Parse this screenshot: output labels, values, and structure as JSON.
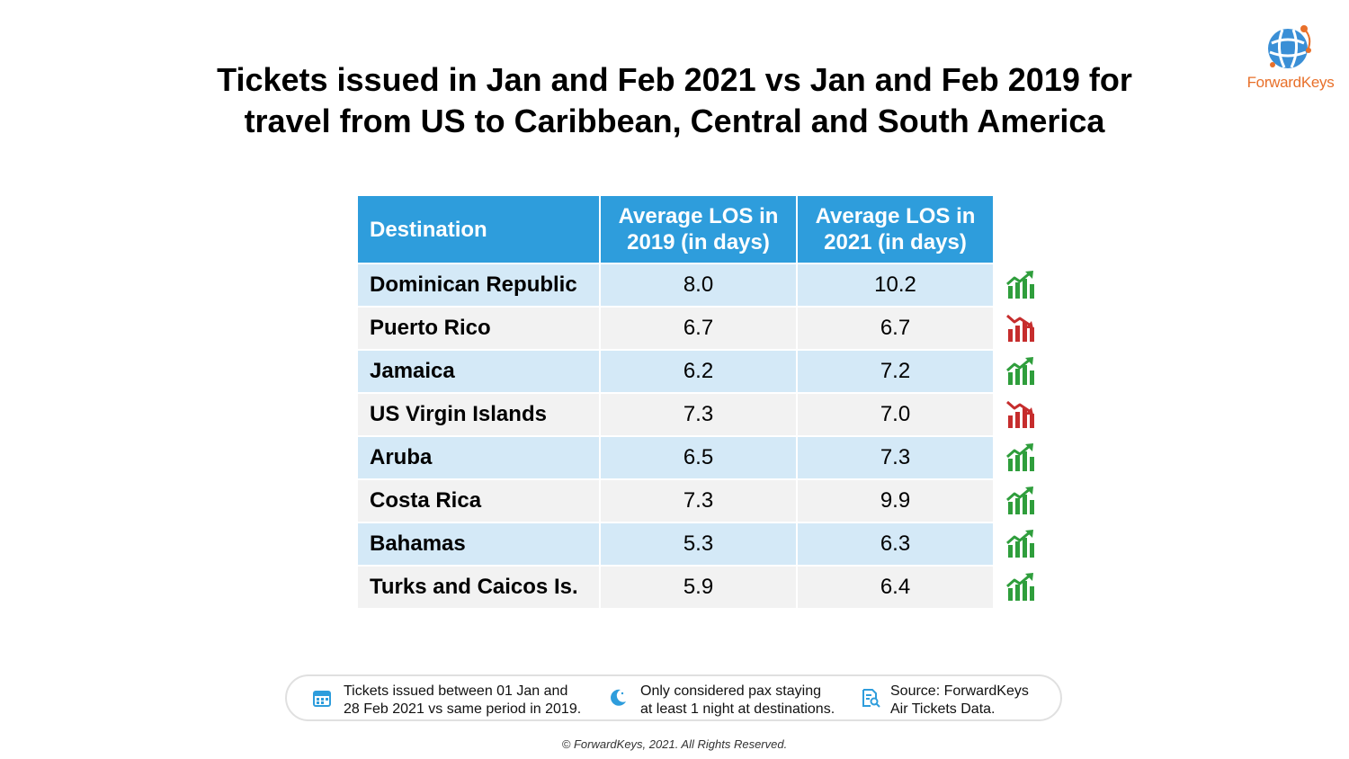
{
  "title_line1": "Tickets issued in Jan and Feb 2021 vs Jan and Feb 2019 for",
  "title_line2": "travel from US to Caribbean, Central and South America",
  "logo": {
    "text": "ForwardKeys",
    "icon": "globe-network-icon",
    "color": "#e8702a"
  },
  "colors": {
    "header": "#2e9ddc",
    "row_odd": "#d4e9f7",
    "row_even": "#f2f2f2",
    "up": "#2f9e3c",
    "down": "#c62d2d"
  },
  "chart_data": {
    "type": "table",
    "columns": [
      "Destination",
      "Average LOS in 2019 (in days)",
      "Average LOS in 2021 (in days)"
    ],
    "column_lines": [
      [
        "Average LOS in",
        "2019 (in days)"
      ],
      [
        "Average LOS in",
        "2021 (in days)"
      ]
    ],
    "rows": [
      {
        "destination": "Dominican Republic",
        "los_2019": "8.0",
        "los_2021": "10.2",
        "trend": "up"
      },
      {
        "destination": "Puerto Rico",
        "los_2019": "6.7",
        "los_2021": "6.7",
        "trend": "down"
      },
      {
        "destination": "Jamaica",
        "los_2019": "6.2",
        "los_2021": "7.2",
        "trend": "up"
      },
      {
        "destination": "US Virgin Islands",
        "los_2019": "7.3",
        "los_2021": "7.0",
        "trend": "down"
      },
      {
        "destination": "Aruba",
        "los_2019": "6.5",
        "los_2021": "7.3",
        "trend": "up"
      },
      {
        "destination": "Costa Rica",
        "los_2019": "7.3",
        "los_2021": "9.9",
        "trend": "up"
      },
      {
        "destination": "Bahamas",
        "los_2019": "5.3",
        "los_2021": "6.3",
        "trend": "up"
      },
      {
        "destination": "Turks and Caicos Is.",
        "los_2019": "5.9",
        "los_2021": "6.4",
        "trend": "up"
      }
    ]
  },
  "footer": {
    "items": [
      {
        "icon": "calendar-icon",
        "line1": "Tickets issued between 01 Jan and",
        "line2": "28 Feb 2021 vs same period in 2019."
      },
      {
        "icon": "moon-icon",
        "line1": "Only considered pax staying",
        "line2": "at least 1 night at destinations."
      },
      {
        "icon": "document-search-icon",
        "line1": "Source: ForwardKeys",
        "line2": "Air Tickets Data."
      }
    ]
  },
  "copyright": "© ForwardKeys, 2021. All Rights Reserved."
}
